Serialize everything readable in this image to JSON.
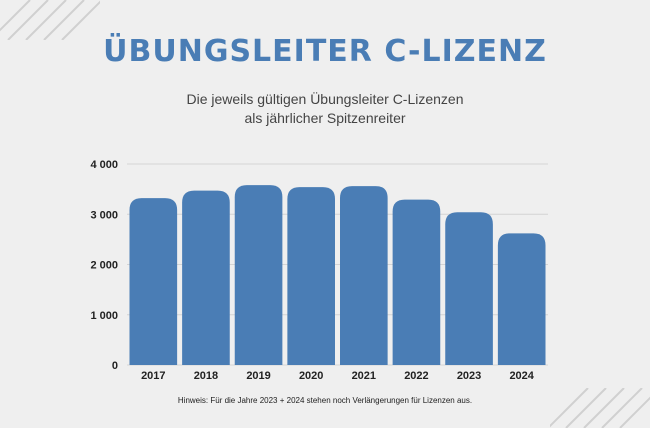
{
  "title": "ÜBUNGSLEITER C-LIZENZ",
  "subtitle_line1": "Die jeweils gültigen Übungsleiter C-Lizenzen",
  "subtitle_line2": "als jährlicher Spitzenreiter",
  "footnote": "Hinweis: Für die Jahre 2023 + 2024 stehen noch Verlängerungen für Lizenzen aus.",
  "colors": {
    "background": "#efefef",
    "title": "#4a7db5",
    "bar": "#4a7db5",
    "grid": "#d4d4d4",
    "decoration": "#d0d0d0"
  },
  "chart_data": {
    "type": "bar",
    "categories": [
      "2017",
      "2018",
      "2019",
      "2020",
      "2021",
      "2022",
      "2023",
      "2024"
    ],
    "values": [
      3320,
      3470,
      3580,
      3540,
      3560,
      3290,
      3040,
      2620
    ],
    "ylim": [
      0,
      4000
    ],
    "yticks": [
      0,
      1000,
      2000,
      3000,
      4000
    ],
    "ytick_labels": [
      "0",
      "1 000",
      "2 000",
      "3 000",
      "4 000"
    ],
    "grid": true,
    "legend": false,
    "xlabel": "",
    "ylabel": ""
  }
}
